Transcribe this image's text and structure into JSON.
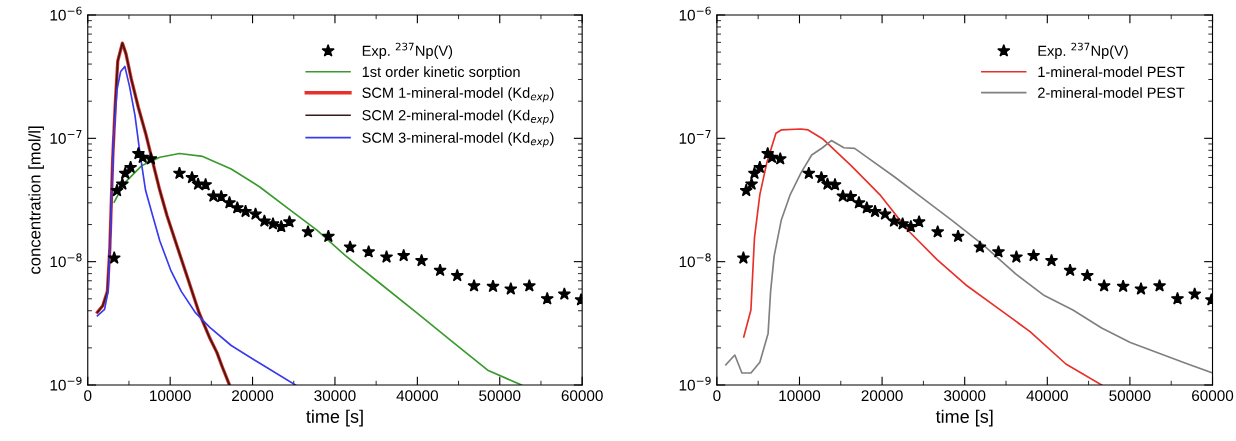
{
  "chart_data": [
    {
      "type": "line",
      "xlabel": "time [s]",
      "ylabel": "concentration [mol/l]",
      "log": "y",
      "xlim": [
        0,
        60000
      ],
      "xticks": [
        0,
        10000,
        20000,
        30000,
        40000,
        50000,
        60000
      ],
      "ylim": [
        1e-09,
        1e-06
      ],
      "yticks": [
        {
          "value": 1e-09,
          "label": "10$^{−9}$"
        },
        {
          "value": 1e-08,
          "label": "10$^{−8}$"
        },
        {
          "value": 1e-07,
          "label": "10$^{−7}$"
        },
        {
          "value": 1e-06,
          "label": "10$^{−6}$"
        }
      ],
      "grid": false,
      "legend": "top right",
      "series": [
        {
          "name": "Exp. $^{237}$Np(V)",
          "type": "scatter",
          "marker": "star",
          "color": "#000000",
          "x": [
            3210,
            3550,
            4200,
            4550,
            5200,
            6150,
            6670,
            7670,
            11130,
            12650,
            13390,
            14300,
            15250,
            16200,
            17200,
            18150,
            19150,
            20360,
            21440,
            22480,
            23480,
            24480,
            26730,
            29200,
            31840,
            34090,
            36260,
            38340,
            40510,
            42760,
            44840,
            46880,
            49180,
            51340,
            53590,
            55760,
            57840,
            59870
          ],
          "values": [
            1.07e-08,
            3.77e-08,
            4.25e-08,
            5.2e-08,
            5.8e-08,
            7.5e-08,
            7e-08,
            6.8e-08,
            5.2e-08,
            4.8e-08,
            4.25e-08,
            4.2e-08,
            3.4e-08,
            3.36e-08,
            3e-08,
            2.73e-08,
            2.55e-08,
            2.43e-08,
            2.13e-08,
            2.02e-08,
            1.92e-08,
            2.1e-08,
            1.74e-08,
            1.6e-08,
            1.31e-08,
            1.2e-08,
            1.09e-08,
            1.12e-08,
            1.02e-08,
            8.5e-09,
            7.7e-09,
            6.35e-09,
            6.3e-09,
            6e-09,
            6.35e-09,
            5e-09,
            5.45e-09,
            4.9e-09
          ]
        },
        {
          "name": "1st order kinetic sorption",
          "color": "#3a9a2e",
          "x": [
            3210,
            4420,
            6580,
            8750,
            11130,
            13950,
            17410,
            20880,
            24340,
            27810,
            31270,
            35600,
            39940,
            44270,
            48610,
            52630
          ],
          "values": [
            3.04e-08,
            4.31e-08,
            6.03e-08,
            7.03e-08,
            7.53e-08,
            7.13e-08,
            5.64e-08,
            4.03e-08,
            2.69e-08,
            1.8e-08,
            1.12e-08,
            6.56e-09,
            3.84e-09,
            2.24e-09,
            1.31e-09,
            1e-09
          ]
        },
        {
          "name": "SCM 1-mineral-model (Kd$_{exp}$)",
          "color": "#e8302a",
          "x": [
            1170,
            1820,
            2380,
            2680,
            3030,
            3340,
            3640,
            4200,
            4640,
            5280,
            6150,
            7020,
            7880,
            8750,
            9620,
            10910,
            12220,
            13520,
            14810,
            15680,
            16330,
            17200
          ],
          "values": [
            3.89e-09,
            4.39e-09,
            5.74e-09,
            1.29e-08,
            6.9e-08,
            1.89e-07,
            4.23e-07,
            5.92e-07,
            4.84e-07,
            3.03e-07,
            1.77e-07,
            1.1e-07,
            6.44e-08,
            3.77e-08,
            2.36e-08,
            1.29e-08,
            7.03e-09,
            3.84e-09,
            2.4e-09,
            1.83e-09,
            1.4e-09,
            1e-09
          ]
        },
        {
          "name": "SCM 2-mineral-model (Kd$_{exp}$)",
          "color": "#3a1a14",
          "x": [
            1170,
            1820,
            2380,
            2680,
            3030,
            3340,
            3640,
            4200,
            4640,
            5280,
            6150,
            7020,
            7880,
            8750,
            9620,
            10910,
            12220,
            13520,
            14810,
            15680,
            16330,
            17200
          ],
          "values": [
            3.89e-09,
            4.39e-09,
            5.74e-09,
            1.29e-08,
            6.9e-08,
            1.89e-07,
            4.23e-07,
            5.92e-07,
            4.84e-07,
            3.03e-07,
            1.77e-07,
            1.1e-07,
            6.44e-08,
            3.77e-08,
            2.36e-08,
            1.29e-08,
            7.03e-09,
            3.84e-09,
            2.4e-09,
            1.83e-09,
            1.4e-09,
            1e-09
          ]
        },
        {
          "name": "SCM 3-mineral-model (Kd$_{exp}$)",
          "color": "#3a3aee",
          "x": [
            1170,
            2040,
            2470,
            2770,
            3120,
            3550,
            3980,
            4500,
            5070,
            5720,
            6360,
            7020,
            7880,
            8750,
            10050,
            11350,
            13090,
            14810,
            17410,
            20880,
            25210
          ],
          "values": [
            3.64e-09,
            4.1e-09,
            5.74e-09,
            1.8e-08,
            9.66e-08,
            2.47e-07,
            3.46e-07,
            3.83e-07,
            2.64e-07,
            1.55e-07,
            7.38e-08,
            3.77e-08,
            2.36e-08,
            1.47e-08,
            8.59e-09,
            5.74e-09,
            3.84e-09,
            2.93e-09,
            2.09e-09,
            1.5e-09,
            1e-09
          ]
        }
      ]
    },
    {
      "type": "line",
      "xlabel": "time [s]",
      "log": "y",
      "xlim": [
        0,
        60000
      ],
      "xticks": [
        0,
        10000,
        20000,
        30000,
        40000,
        50000,
        60000
      ],
      "ylim": [
        1e-09,
        1e-06
      ],
      "yticks": [
        {
          "value": 1e-09,
          "label": "10$^{−9}$"
        },
        {
          "value": 1e-08,
          "label": "10$^{−8}$"
        },
        {
          "value": 1e-07,
          "label": "10$^{−7}$"
        },
        {
          "value": 1e-06,
          "label": "10$^{−6}$"
        }
      ],
      "grid": false,
      "legend": "top right",
      "series": [
        {
          "name": "Exp. $^{237}$Np(V)",
          "type": "scatter",
          "marker": "star",
          "color": "#000000",
          "x": [
            3210,
            3550,
            4200,
            4550,
            5200,
            6150,
            6670,
            7670,
            11130,
            12650,
            13390,
            14300,
            15250,
            16200,
            17200,
            18150,
            19150,
            20360,
            21440,
            22480,
            23480,
            24480,
            26730,
            29200,
            31840,
            34090,
            36260,
            38340,
            40510,
            42760,
            44840,
            46880,
            49180,
            51340,
            53590,
            55760,
            57840,
            59870
          ],
          "values": [
            1.07e-08,
            3.77e-08,
            4.25e-08,
            5.2e-08,
            5.8e-08,
            7.5e-08,
            7e-08,
            6.8e-08,
            5.2e-08,
            4.8e-08,
            4.25e-08,
            4.2e-08,
            3.4e-08,
            3.36e-08,
            3e-08,
            2.73e-08,
            2.55e-08,
            2.43e-08,
            2.13e-08,
            2.02e-08,
            1.92e-08,
            2.1e-08,
            1.74e-08,
            1.6e-08,
            1.31e-08,
            1.2e-08,
            1.09e-08,
            1.12e-08,
            1.02e-08,
            8.5e-09,
            7.7e-09,
            6.35e-09,
            6.3e-09,
            6e-09,
            6.35e-09,
            5e-09,
            5.45e-09,
            4.9e-09
          ]
        },
        {
          "name": "1-mineral-model PEST",
          "color": "#e8302a",
          "x": [
            3250,
            4120,
            4550,
            5200,
            6060,
            7150,
            7800,
            10180,
            11050,
            12780,
            16250,
            19720,
            23180,
            26650,
            30110,
            34010,
            37910,
            42250,
            46580
          ],
          "values": [
            2.45e-09,
            4.06e-09,
            1.56e-08,
            3.5e-08,
            6.41e-08,
            1.1e-07,
            1.17e-07,
            1.19e-07,
            1.17e-07,
            9.93e-08,
            6e-08,
            3.5e-08,
            1.78e-08,
            1.04e-08,
            6.5e-09,
            4.2e-09,
            2.71e-09,
            1.48e-09,
            1e-09
          ]
        },
        {
          "name": "2-mineral-model PEST",
          "color": "#808080",
          "x": [
            1080,
            2170,
            3030,
            4120,
            5200,
            6200,
            6500,
            6930,
            7800,
            8880,
            10180,
            11480,
            12780,
            13860,
            15380,
            16680,
            18410,
            21440,
            24900,
            28380,
            32270,
            36170,
            39640,
            43100,
            46580,
            50050,
            53520,
            57000,
            60000
          ],
          "values": [
            1.46e-09,
            1.75e-09,
            1.25e-09,
            1.25e-09,
            1.53e-09,
            2.62e-09,
            5.68e-09,
            1.11e-08,
            2.18e-08,
            3.5e-08,
            5.24e-08,
            7.33e-08,
            8.39e-08,
            9.59e-08,
            8.39e-08,
            8.28e-08,
            6.85e-08,
            4.9e-08,
            3.27e-08,
            2.18e-08,
            1.36e-08,
            7.96e-09,
            5.31e-09,
            4.06e-09,
            2.9e-09,
            2.21e-09,
            1.81e-09,
            1.48e-09,
            1.25e-09
          ]
        }
      ]
    }
  ]
}
